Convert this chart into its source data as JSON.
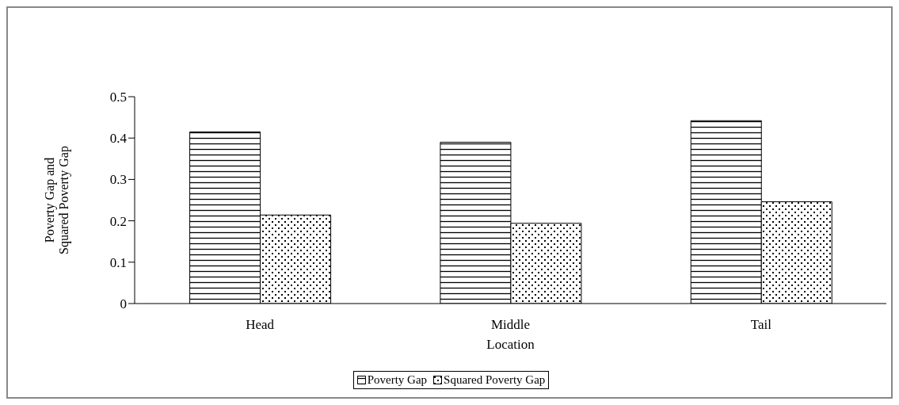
{
  "chart_data": {
    "type": "bar",
    "xlabel": "Location",
    "ylabel": "Poverty Gap and Squared Poverty Gap",
    "categories": [
      "Head",
      "Middle",
      "Tail"
    ],
    "series": [
      {
        "name": "Poverty Gap",
        "color": "#000000",
        "values": [
          0.415,
          0.39,
          0.442
        ]
      },
      {
        "name": "Squared Poverty Gap",
        "color": "#000000",
        "values": [
          0.214,
          0.194,
          0.246
        ]
      }
    ],
    "ylim": [
      0,
      0.5
    ],
    "yticks": [
      0,
      0.1,
      0.2,
      0.3,
      0.4,
      0.5
    ],
    "grid": false,
    "legend": "bottom"
  }
}
